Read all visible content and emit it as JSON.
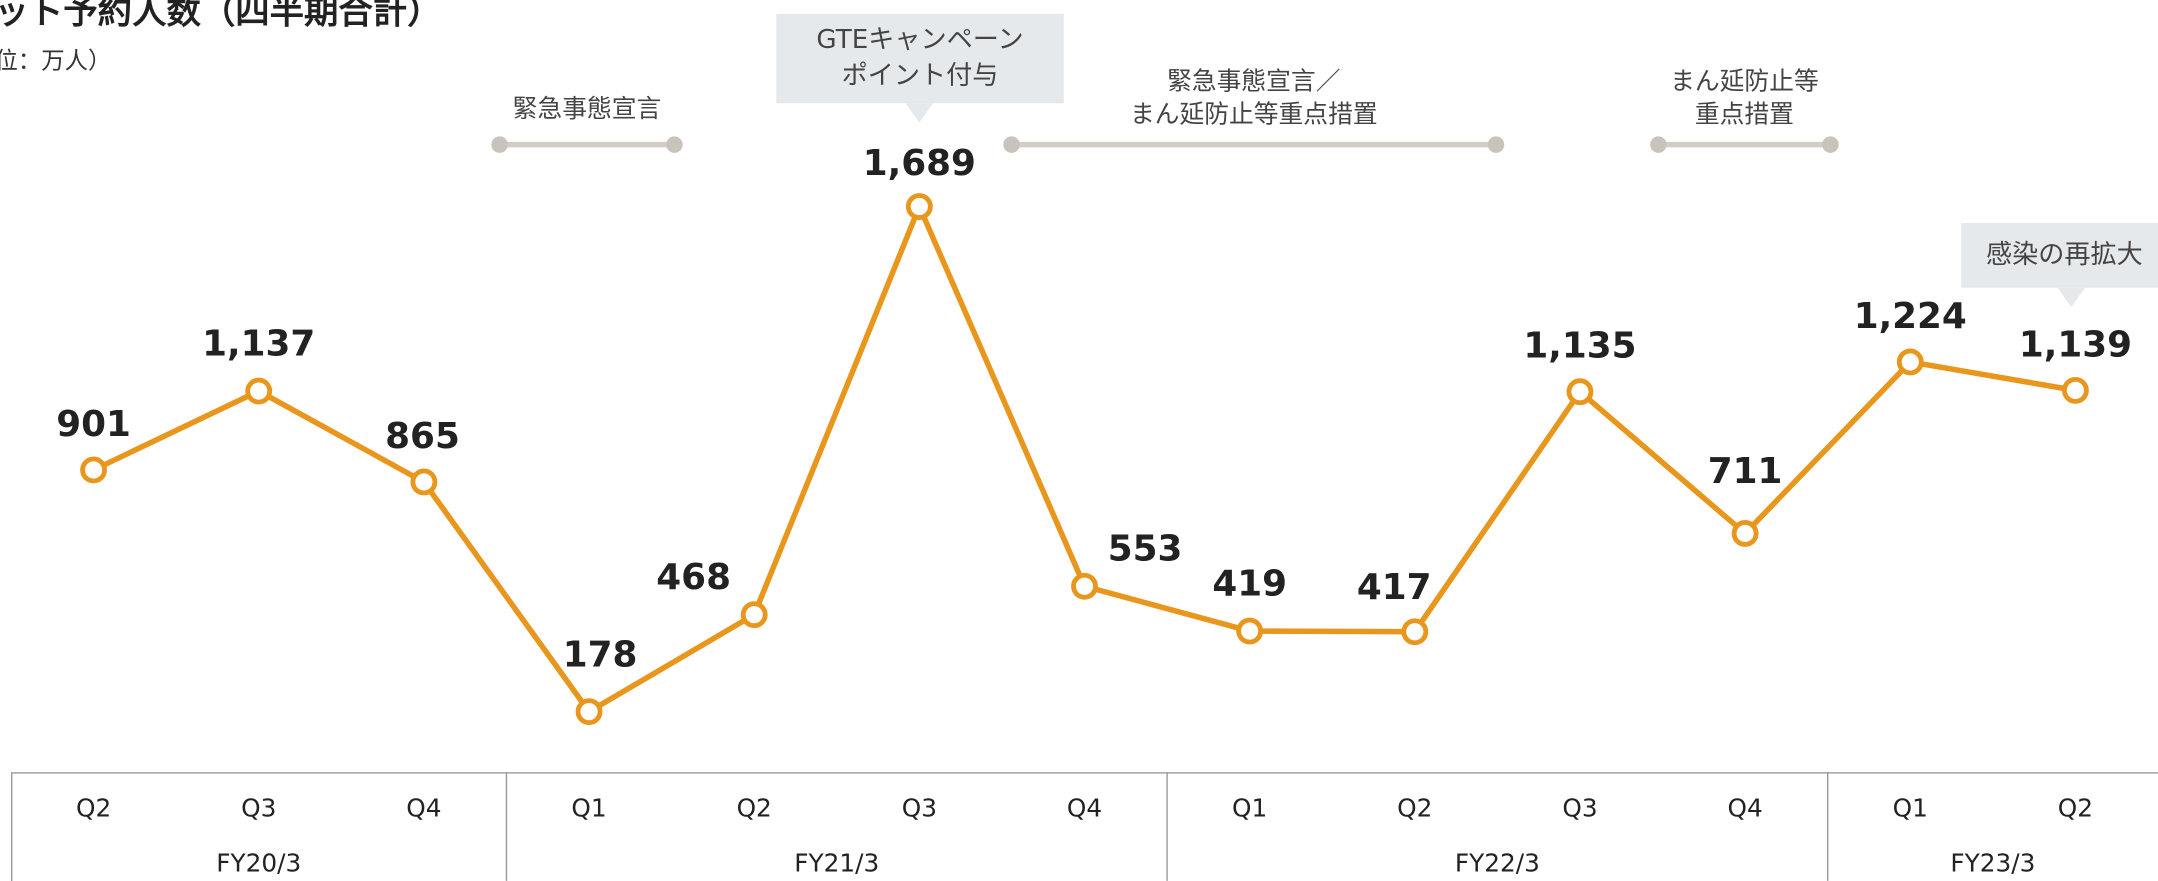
{
  "chart_data": {
    "type": "line",
    "title": "ット予約人数（四半期合計）",
    "subtitle": "位：万人）",
    "groups": [
      {
        "label": "FY20/3",
        "categories": [
          "Q2",
          "Q3",
          "Q4"
        ]
      },
      {
        "label": "FY21/3",
        "categories": [
          "Q1",
          "Q2",
          "Q3",
          "Q4"
        ]
      },
      {
        "label": "FY22/3",
        "categories": [
          "Q1",
          "Q2",
          "Q3",
          "Q4"
        ]
      },
      {
        "label": "FY23/3",
        "categories": [
          "Q1",
          "Q2"
        ]
      }
    ],
    "series": [
      {
        "name": "予約人数",
        "color": "#e8961c",
        "values": [
          901,
          1137,
          865,
          178,
          468,
          1689,
          553,
          419,
          417,
          1135,
          711,
          1224,
          1139
        ],
        "value_labels": [
          "901",
          "1,137",
          "865",
          "178",
          "468",
          "1,689",
          "553",
          "419",
          "417",
          "1,135",
          "711",
          "1,224",
          "1,139"
        ]
      }
    ],
    "annotations": [
      {
        "kind": "period",
        "lines": [
          "緊急事態宣言"
        ]
      },
      {
        "kind": "callout",
        "lines": [
          "GTEキャンペーン",
          "ポイント付与"
        ]
      },
      {
        "kind": "period",
        "lines": [
          "緊急事態宣言／",
          "まん延防止等重点措置"
        ]
      },
      {
        "kind": "period",
        "lines": [
          "まん延防止等",
          "重点措置"
        ]
      },
      {
        "kind": "callout",
        "lines": [
          "感染の再拡大"
        ]
      }
    ]
  }
}
